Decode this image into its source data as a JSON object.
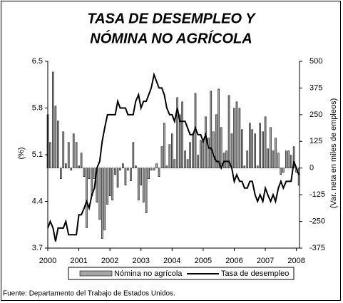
{
  "chart_data": {
    "type": "combo",
    "title": [
      "TASA DE DESEMPLEO Y",
      "NÓMINA NO AGRÍCOLA"
    ],
    "ylabel": "(%)",
    "y2label": "(Var. neta en miles de empleos)",
    "source": "Fuente: Departamento del Trabajo de Estados Unidos.",
    "x": [
      2000,
      2000.08,
      2000.17,
      2000.25,
      2000.33,
      2000.42,
      2000.5,
      2000.58,
      2000.67,
      2000.75,
      2000.83,
      2000.92,
      2001,
      2001.08,
      2001.17,
      2001.25,
      2001.33,
      2001.42,
      2001.5,
      2001.58,
      2001.67,
      2001.75,
      2001.83,
      2001.92,
      2002,
      2002.08,
      2002.17,
      2002.25,
      2002.33,
      2002.42,
      2002.5,
      2002.58,
      2002.67,
      2002.75,
      2002.83,
      2002.92,
      2003,
      2003.08,
      2003.17,
      2003.25,
      2003.33,
      2003.42,
      2003.5,
      2003.58,
      2003.67,
      2003.75,
      2003.83,
      2003.92,
      2004,
      2004.08,
      2004.17,
      2004.25,
      2004.33,
      2004.42,
      2004.5,
      2004.58,
      2004.67,
      2004.75,
      2004.83,
      2004.92,
      2005,
      2005.08,
      2005.17,
      2005.25,
      2005.33,
      2005.42,
      2005.5,
      2005.58,
      2005.67,
      2005.75,
      2005.83,
      2005.92,
      2006,
      2006.08,
      2006.17,
      2006.25,
      2006.33,
      2006.42,
      2006.5,
      2006.58,
      2006.67,
      2006.75,
      2006.83,
      2006.92,
      2007,
      2007.08,
      2007.17,
      2007.25,
      2007.33,
      2007.42,
      2007.5,
      2007.58,
      2007.67,
      2007.75,
      2007.83,
      2007.92,
      2008,
      2008.08
    ],
    "series": [
      {
        "name": "Nómina no agrícola",
        "type": "bar",
        "axis": "y2",
        "color": "#a6a6a6",
        "values": [
          250,
          120,
          450,
          290,
          220,
          -50,
          170,
          20,
          120,
          -10,
          160,
          120,
          10,
          70,
          -40,
          -280,
          -50,
          -130,
          -50,
          -160,
          -240,
          -330,
          -290,
          -170,
          -130,
          -150,
          -30,
          -90,
          -10,
          20,
          -80,
          -10,
          -60,
          120,
          10,
          -150,
          -80,
          -160,
          -210,
          -50,
          -10,
          -10,
          20,
          -40,
          100,
          210,
          10,
          110,
          160,
          40,
          330,
          250,
          310,
          80,
          40,
          120,
          160,
          350,
          60,
          130,
          130,
          240,
          140,
          360,
          170,
          250,
          370,
          190,
          70,
          80,
          340,
          160,
          280,
          310,
          280,
          180,
          10,
          80,
          210,
          180,
          160,
          10,
          210,
          170,
          240,
          90,
          190,
          80,
          140,
          70,
          -30,
          -20,
          80,
          80,
          60,
          100,
          -20,
          -80
        ]
      },
      {
        "name": "Tasa de desempleo",
        "type": "line",
        "color": "#000000",
        "values": [
          4.0,
          4.1,
          4.0,
          3.8,
          4.0,
          4.0,
          4.0,
          4.1,
          3.9,
          3.9,
          3.9,
          3.9,
          4.2,
          4.2,
          4.3,
          4.4,
          4.3,
          4.5,
          4.6,
          4.9,
          5.0,
          5.3,
          5.5,
          5.7,
          5.7,
          5.7,
          5.7,
          5.9,
          5.8,
          5.8,
          5.8,
          5.7,
          5.7,
          5.7,
          5.9,
          6.0,
          5.8,
          5.9,
          5.9,
          6.0,
          6.1,
          6.3,
          6.2,
          6.1,
          6.1,
          6.0,
          5.8,
          5.7,
          5.7,
          5.6,
          5.8,
          5.6,
          5.6,
          5.6,
          5.5,
          5.4,
          5.4,
          5.5,
          5.4,
          5.4,
          5.3,
          5.4,
          5.2,
          5.2,
          5.1,
          5.0,
          5.0,
          4.9,
          5.0,
          5.0,
          5.0,
          4.9,
          4.7,
          4.8,
          4.7,
          4.7,
          4.6,
          4.6,
          4.7,
          4.7,
          4.5,
          4.4,
          4.5,
          4.4,
          4.6,
          4.5,
          4.4,
          4.5,
          4.4,
          4.6,
          4.7,
          4.6,
          4.7,
          4.7,
          4.7,
          5.0,
          4.9,
          4.8
        ]
      }
    ],
    "xlim": [
      2000,
      2008.1
    ],
    "xticks": [
      2000,
      2001,
      2002,
      2003,
      2004,
      2005,
      2006,
      2007,
      2008
    ],
    "ylim": [
      3.7,
      6.5
    ],
    "yticks": [
      3.7,
      4.4,
      5.1,
      5.8,
      6.5
    ],
    "y2lim": [
      -375,
      500
    ],
    "y2ticks": [
      -375,
      -250,
      -125,
      0,
      125,
      250,
      375,
      500
    ]
  }
}
